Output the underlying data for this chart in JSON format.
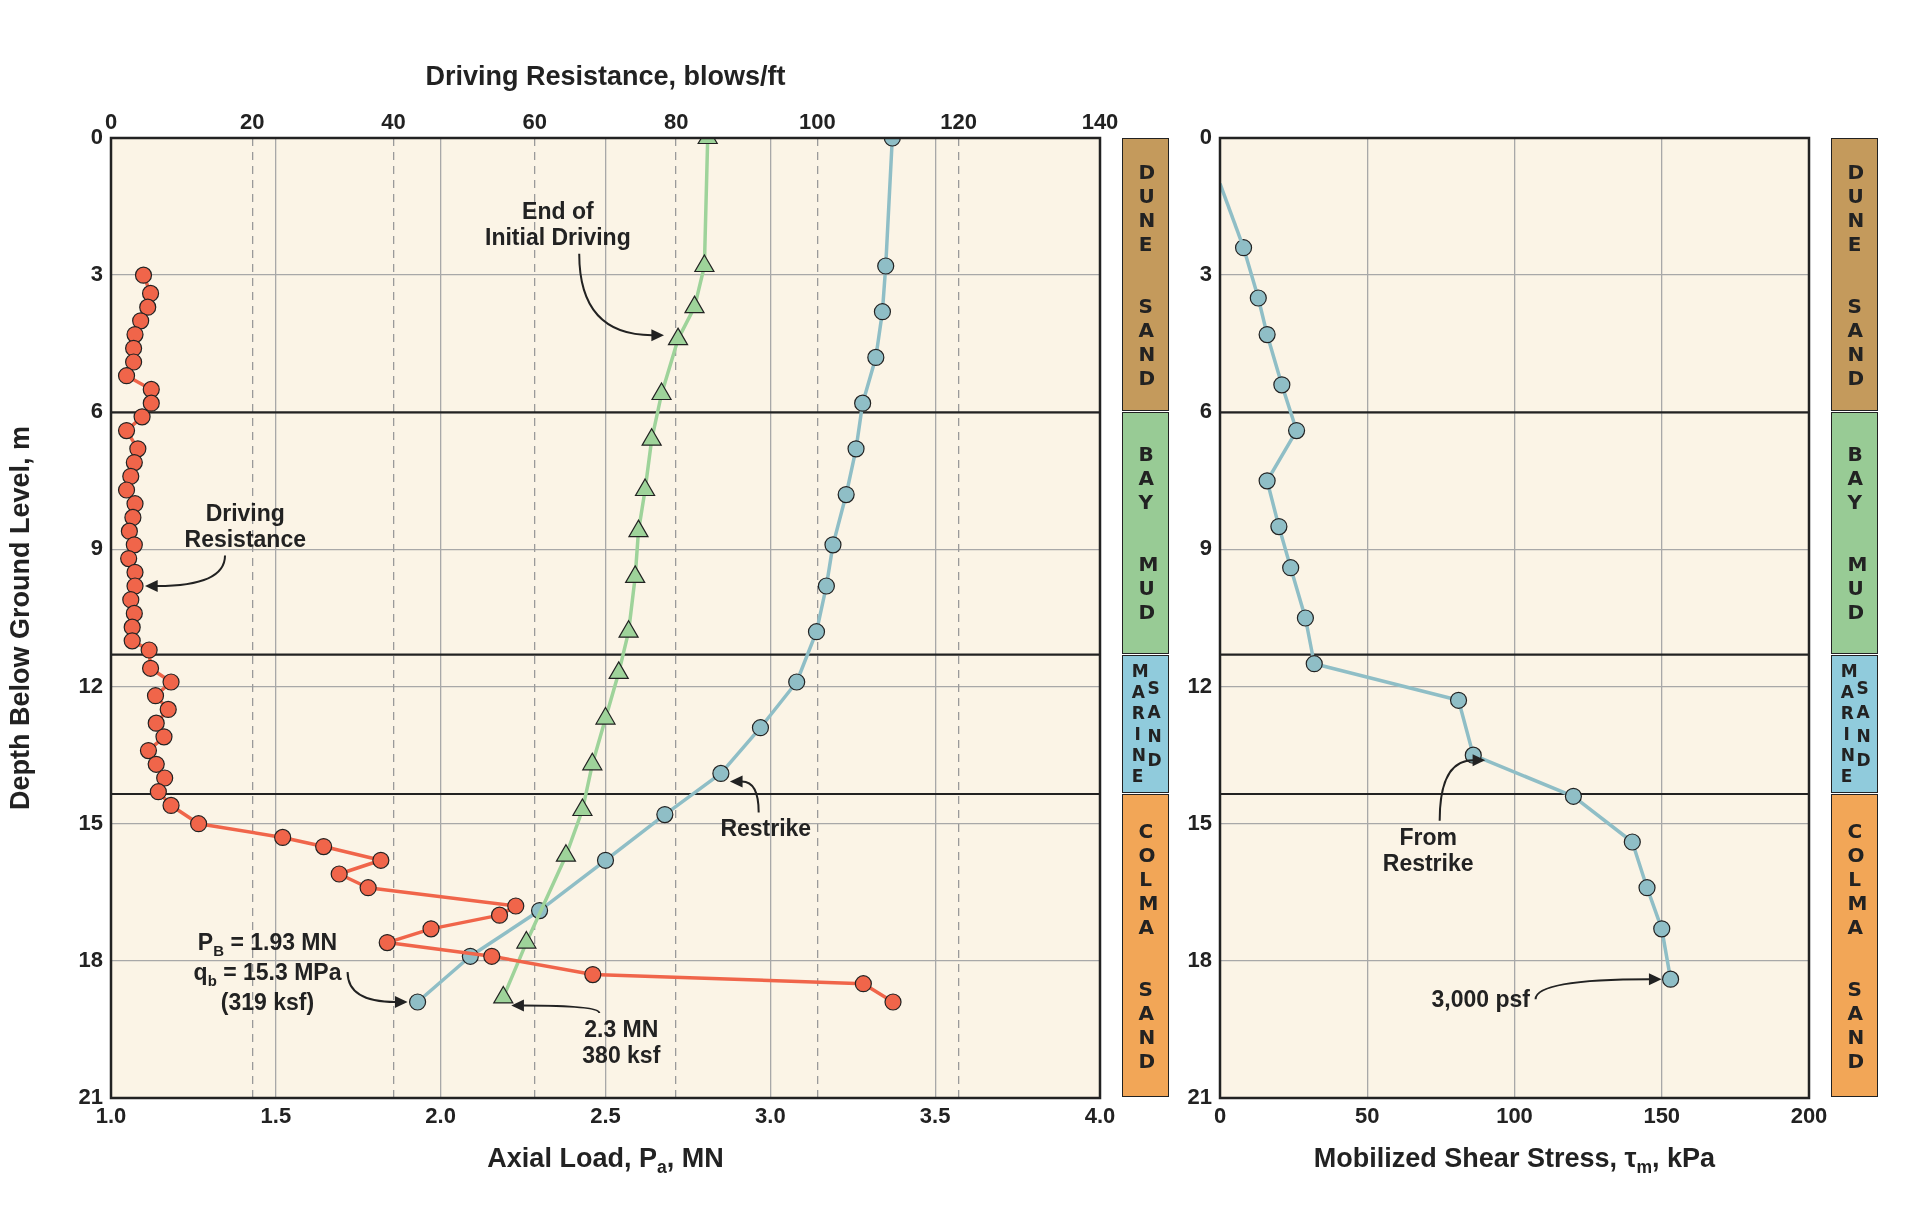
{
  "chart_data": [
    {
      "type": "line",
      "x2label": "Driving Resistance, blows/ft",
      "xlabel": "Axial Load, P$_{a}$, MN",
      "ylabel": "Depth Below Ground Level, m",
      "xlim": [
        1,
        4
      ],
      "xticks": [
        {
          "value": 1,
          "label": "1.0"
        },
        1.5,
        {
          "value": 2,
          "label": "2.0"
        },
        2.5,
        {
          "value": 3,
          "label": "3.0"
        },
        3.5,
        {
          "value": 4,
          "label": "4.0"
        }
      ],
      "x2lim": [
        0,
        140
      ],
      "x2ticks": [
        0,
        20,
        40,
        60,
        80,
        100,
        120,
        140
      ],
      "ylim": [
        21,
        0
      ],
      "yticks": [
        0,
        3,
        6,
        9,
        12,
        15,
        18,
        21
      ],
      "grid": true,
      "line_style": "solid",
      "series": [
        {
          "name": "Driving Resistance",
          "color": "#f0654a",
          "marker": "circle",
          "axis": "x2",
          "x": [
            4.6,
            5.6,
            5.2,
            4.2,
            3.4,
            3.2,
            3.2,
            2.2,
            5.7,
            5.7,
            4.4,
            2.2,
            3.8,
            3.3,
            2.8,
            2.2,
            3.4,
            3.1,
            2.6,
            3.3,
            2.5,
            3.4,
            3.4,
            2.8,
            3.3,
            3.0,
            3.0,
            5.4,
            5.6,
            8.5,
            6.3,
            8.1,
            6.4,
            7.5,
            5.3,
            6.4,
            7.6,
            6.7,
            8.5,
            12.4,
            24.3,
            30.1,
            38.2,
            32.3,
            36.4,
            57.3,
            55.0,
            45.3,
            39.1,
            53.9,
            68.2,
            106.5,
            110.7
          ],
          "values": [
            3.0,
            3.4,
            3.7,
            4.0,
            4.3,
            4.6,
            4.9,
            5.2,
            5.5,
            5.8,
            6.1,
            6.4,
            6.8,
            7.1,
            7.4,
            7.7,
            8.0,
            8.3,
            8.6,
            8.9,
            9.2,
            9.5,
            9.8,
            10.1,
            10.4,
            10.7,
            11.0,
            11.2,
            11.6,
            11.9,
            12.2,
            12.5,
            12.8,
            13.1,
            13.4,
            13.7,
            14.0,
            14.3,
            14.6,
            15.0,
            15.3,
            15.5,
            15.8,
            16.1,
            16.4,
            16.8,
            17.0,
            17.3,
            17.6,
            17.9,
            18.3,
            18.5,
            18.9
          ]
        },
        {
          "name": "End of Initial Driving",
          "color": "#9ed39a",
          "marker": "triangle",
          "x": [
            2.81,
            2.8,
            2.77,
            2.72,
            2.67,
            2.64,
            2.62,
            2.6,
            2.59,
            2.57,
            2.54,
            2.5,
            2.46,
            2.43,
            2.38,
            2.26,
            2.19
          ],
          "values": [
            0,
            2.8,
            3.7,
            4.4,
            5.6,
            6.6,
            7.7,
            8.6,
            9.6,
            10.8,
            11.7,
            12.7,
            13.7,
            14.7,
            15.7,
            17.6,
            18.8
          ]
        },
        {
          "name": "Restrike",
          "color": "#8fbec6",
          "marker": "circle",
          "x": [
            3.37,
            3.35,
            3.34,
            3.32,
            3.28,
            3.26,
            3.23,
            3.19,
            3.17,
            3.14,
            3.08,
            2.97,
            2.85,
            2.68,
            2.5,
            2.3,
            2.09,
            1.93
          ],
          "values": [
            0,
            2.8,
            3.8,
            4.8,
            5.8,
            6.8,
            7.8,
            8.9,
            9.8,
            10.8,
            11.9,
            12.9,
            13.9,
            14.8,
            15.8,
            16.9,
            17.9,
            18.9
          ]
        }
      ],
      "ref_lines": [
        {
          "axis": "y",
          "value": 6,
          "color": "#222222"
        },
        {
          "axis": "y",
          "value": 11.3,
          "color": "#222222"
        },
        {
          "axis": "y",
          "value": 14.35,
          "color": "#222222"
        }
      ],
      "annotations": [
        "P$_{B}$ = 1.93 MN\nq$_{b}$ = 15.3 MPa\n(319 ksf)",
        "2.3 MN\n380 ksf",
        "DUNE SAND",
        "BAY MUD",
        "MARINE SAND",
        "COLMA SAND"
      ]
    },
    {
      "type": "line",
      "xlabel": "Mobilized Shear Stress, τ$_{m}$, kPa",
      "xlim": [
        0,
        200
      ],
      "xticks": [
        0,
        50,
        100,
        150,
        200
      ],
      "ylim": [
        21,
        0
      ],
      "yticks": [
        0,
        3,
        6,
        9,
        12,
        15,
        18,
        21
      ],
      "grid": true,
      "line_style": "solid",
      "series": [
        {
          "color": "#8fbec6",
          "x": [
            0,
            8
          ],
          "values": [
            1.0,
            2.4
          ]
        },
        {
          "color": "#8fbec6",
          "marker": "circle",
          "x": [
            8,
            13,
            16,
            21,
            26,
            16,
            20,
            24,
            29,
            32,
            81,
            86,
            120,
            140,
            145,
            150,
            153
          ],
          "values": [
            2.4,
            3.5,
            4.3,
            5.4,
            6.4,
            7.5,
            8.5,
            9.4,
            10.5,
            11.5,
            12.3,
            13.5,
            14.4,
            15.4,
            16.4,
            17.3,
            18.4
          ]
        }
      ],
      "ref_lines": [
        {
          "axis": "y",
          "value": 6,
          "color": "#222222"
        },
        {
          "axis": "y",
          "value": 11.3,
          "color": "#222222"
        },
        {
          "axis": "y",
          "value": 14.35,
          "color": "#222222"
        }
      ],
      "annotations": [
        {
          "text": "From\nRestrike",
          "x": 86,
          "y": 13.5
        },
        "3,000 psf",
        "DUNE SAND",
        "BAY MUD",
        "MARINE SAND",
        "COLMA SAND"
      ]
    }
  ]
}
